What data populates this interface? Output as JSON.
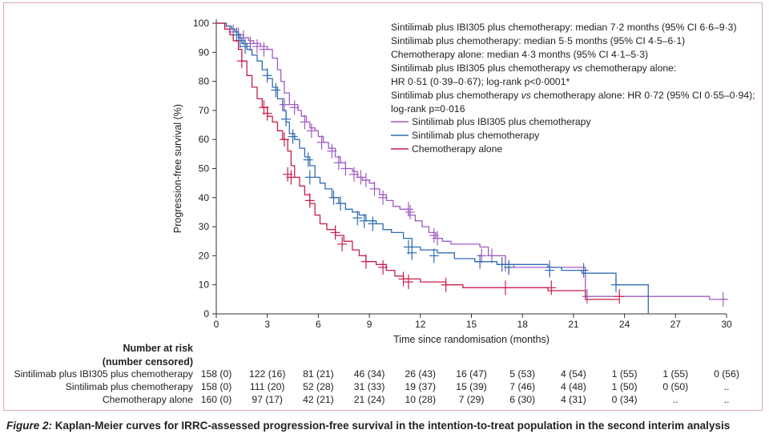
{
  "chart_data": {
    "type": "line",
    "subtype": "kaplan-meier",
    "xlabel": "Time since randomisation (months)",
    "ylabel": "Progression-free survival (%)",
    "xlim": [
      0,
      30
    ],
    "ylim": [
      0,
      100
    ],
    "xticks": [
      0,
      3,
      6,
      9,
      12,
      15,
      18,
      21,
      24,
      27,
      30
    ],
    "yticks": [
      0,
      10,
      20,
      30,
      40,
      50,
      60,
      70,
      80,
      90,
      100
    ],
    "grid": false,
    "annotations": [
      "Sintilimab plus IBI305 plus chemotherapy: median 7·2 months (95% CI 6·6–9·3)",
      "Sintilimab plus chemotherapy: median 5·5 months (95% CI 4·5–6·1)",
      "Chemotherapy alone: median 4·3 months (95% CI 4·1–5·3)",
      "Sintilimab plus IBI305 plus chemotherapy vs chemotherapy alone:",
      "HR 0·51 (0·39–0·67); log-rank p<0·0001*",
      "Sintilimab plus chemotherapy vs chemotherapy alone: HR 0·72 (95% CI 0·55–0·94);",
      "log-rank p=0·016"
    ],
    "legend_position": "top-right",
    "series": [
      {
        "name": "Sintilimab plus IBI305 plus chemotherapy",
        "color": "#a05cc0",
        "steps": [
          [
            0,
            100
          ],
          [
            0.5,
            99
          ],
          [
            0.8,
            98
          ],
          [
            1.0,
            97
          ],
          [
            1.3,
            96
          ],
          [
            1.6,
            95
          ],
          [
            1.9,
            94
          ],
          [
            2.2,
            93
          ],
          [
            2.6,
            92
          ],
          [
            3.0,
            91
          ],
          [
            3.3,
            88
          ],
          [
            3.6,
            84
          ],
          [
            3.8,
            80
          ],
          [
            4.0,
            76
          ],
          [
            4.3,
            72
          ],
          [
            4.8,
            70
          ],
          [
            5.0,
            68
          ],
          [
            5.3,
            66
          ],
          [
            5.5,
            64
          ],
          [
            5.8,
            63
          ],
          [
            6.0,
            61
          ],
          [
            6.3,
            59
          ],
          [
            6.6,
            57
          ],
          [
            7.0,
            54
          ],
          [
            7.3,
            52
          ],
          [
            7.6,
            50
          ],
          [
            8.0,
            49
          ],
          [
            8.3,
            47
          ],
          [
            8.6,
            46
          ],
          [
            9.0,
            45
          ],
          [
            9.3,
            43
          ],
          [
            9.6,
            41
          ],
          [
            10.0,
            39
          ],
          [
            10.4,
            37
          ],
          [
            10.8,
            36
          ],
          [
            11.3,
            34
          ],
          [
            11.7,
            32
          ],
          [
            12.1,
            30
          ],
          [
            12.5,
            28
          ],
          [
            12.9,
            26
          ],
          [
            13.3,
            25
          ],
          [
            13.8,
            24
          ],
          [
            15.5,
            23
          ],
          [
            16.0,
            20
          ],
          [
            17.0,
            17
          ],
          [
            17.5,
            16
          ],
          [
            21.7,
            6
          ],
          [
            29.0,
            5
          ],
          [
            30,
            5
          ]
        ],
        "censor": [
          [
            1.0,
            97
          ],
          [
            1.3,
            96
          ],
          [
            1.6,
            95
          ],
          [
            2.0,
            93
          ],
          [
            2.4,
            92
          ],
          [
            2.8,
            91
          ],
          [
            4.0,
            72
          ],
          [
            4.6,
            71
          ],
          [
            5.2,
            66
          ],
          [
            5.6,
            63
          ],
          [
            6.2,
            59
          ],
          [
            6.8,
            56
          ],
          [
            7.2,
            52
          ],
          [
            7.6,
            50
          ],
          [
            8.1,
            48
          ],
          [
            8.5,
            47
          ],
          [
            8.8,
            46
          ],
          [
            9.3,
            43
          ],
          [
            9.8,
            40
          ],
          [
            11.3,
            36
          ],
          [
            11.4,
            35
          ],
          [
            12.8,
            27
          ],
          [
            13.0,
            26
          ],
          [
            15.6,
            20
          ],
          [
            16.2,
            20
          ],
          [
            17.0,
            17
          ],
          [
            17.2,
            16
          ],
          [
            19.6,
            16
          ],
          [
            21.8,
            6
          ],
          [
            29.8,
            5
          ]
        ]
      },
      {
        "name": "Sintilimab plus chemotherapy",
        "color": "#2f6cb0",
        "steps": [
          [
            0,
            100
          ],
          [
            0.6,
            99
          ],
          [
            0.9,
            98
          ],
          [
            1.1,
            97
          ],
          [
            1.3,
            95
          ],
          [
            1.5,
            93
          ],
          [
            1.8,
            91
          ],
          [
            2.1,
            89
          ],
          [
            2.4,
            87
          ],
          [
            2.7,
            84
          ],
          [
            3.0,
            81
          ],
          [
            3.3,
            78
          ],
          [
            3.6,
            74
          ],
          [
            3.9,
            70
          ],
          [
            4.1,
            66
          ],
          [
            4.3,
            62
          ],
          [
            4.6,
            60
          ],
          [
            4.9,
            57
          ],
          [
            5.2,
            54
          ],
          [
            5.5,
            51
          ],
          [
            5.8,
            47
          ],
          [
            6.1,
            45
          ],
          [
            6.4,
            43
          ],
          [
            6.8,
            40
          ],
          [
            7.2,
            38
          ],
          [
            7.6,
            36
          ],
          [
            8.0,
            35
          ],
          [
            8.4,
            34
          ],
          [
            8.8,
            32
          ],
          [
            9.4,
            31
          ],
          [
            9.8,
            29
          ],
          [
            10.3,
            28
          ],
          [
            11.0,
            26
          ],
          [
            11.5,
            23
          ],
          [
            12.0,
            22
          ],
          [
            13.0,
            21
          ],
          [
            14.0,
            19
          ],
          [
            15.2,
            18
          ],
          [
            16.5,
            17
          ],
          [
            19.5,
            16
          ],
          [
            20.3,
            15
          ],
          [
            21.5,
            14
          ],
          [
            23.5,
            10
          ],
          [
            25.4,
            0
          ]
        ],
        "censor": [
          [
            1.2,
            96
          ],
          [
            1.4,
            94
          ],
          [
            1.7,
            92
          ],
          [
            3.0,
            82
          ],
          [
            3.5,
            77
          ],
          [
            4.1,
            67
          ],
          [
            4.5,
            61
          ],
          [
            5.4,
            53
          ],
          [
            5.5,
            47
          ],
          [
            6.9,
            40
          ],
          [
            7.3,
            38
          ],
          [
            8.3,
            33
          ],
          [
            8.7,
            32
          ],
          [
            9.2,
            31
          ],
          [
            11.3,
            23
          ],
          [
            11.5,
            21
          ],
          [
            12.8,
            20
          ],
          [
            15.5,
            18
          ],
          [
            16.8,
            17
          ],
          [
            17.2,
            16
          ],
          [
            19.6,
            15
          ],
          [
            21.6,
            15
          ],
          [
            23.5,
            10
          ]
        ]
      },
      {
        "name": "Chemotherapy alone",
        "color": "#c81e4a",
        "steps": [
          [
            0,
            100
          ],
          [
            0.5,
            98
          ],
          [
            0.8,
            96
          ],
          [
            1.0,
            94
          ],
          [
            1.3,
            91
          ],
          [
            1.5,
            87
          ],
          [
            1.8,
            82
          ],
          [
            2.1,
            78
          ],
          [
            2.4,
            74
          ],
          [
            2.7,
            71
          ],
          [
            3.0,
            68
          ],
          [
            3.3,
            66
          ],
          [
            3.6,
            63
          ],
          [
            3.9,
            60
          ],
          [
            4.2,
            56
          ],
          [
            4.4,
            51
          ],
          [
            4.6,
            47
          ],
          [
            4.9,
            44
          ],
          [
            5.2,
            41
          ],
          [
            5.5,
            38
          ],
          [
            5.8,
            34
          ],
          [
            6.1,
            31
          ],
          [
            6.5,
            29
          ],
          [
            7.0,
            27
          ],
          [
            7.5,
            25
          ],
          [
            8.0,
            22
          ],
          [
            8.4,
            20
          ],
          [
            8.8,
            18
          ],
          [
            9.4,
            17
          ],
          [
            10.0,
            15
          ],
          [
            10.5,
            13
          ],
          [
            11.0,
            12
          ],
          [
            12.0,
            11
          ],
          [
            13.5,
            10
          ],
          [
            14.5,
            9
          ],
          [
            19.5,
            8
          ],
          [
            21.7,
            5
          ],
          [
            23.7,
            5
          ]
        ],
        "censor": [
          [
            1.5,
            87
          ],
          [
            2.8,
            71
          ],
          [
            3.0,
            69
          ],
          [
            4.0,
            60
          ],
          [
            4.2,
            48
          ],
          [
            4.4,
            47
          ],
          [
            5.5,
            39
          ],
          [
            7.0,
            28
          ],
          [
            7.4,
            24
          ],
          [
            8.8,
            18
          ],
          [
            9.8,
            16
          ],
          [
            11.0,
            12
          ],
          [
            11.3,
            11
          ],
          [
            13.5,
            10
          ],
          [
            17.0,
            9
          ],
          [
            19.7,
            9
          ],
          [
            23.7,
            6
          ]
        ]
      }
    ],
    "risk_table": {
      "header": [
        "Number at risk",
        "(number censored)"
      ],
      "rows": [
        {
          "label": "Sintilimab plus IBI305 plus chemotherapy",
          "values": [
            "158 (0)",
            "122 (16)",
            "81 (21)",
            "46 (34)",
            "26 (43)",
            "16 (47)",
            "5 (53)",
            "4 (54)",
            "1 (55)",
            "1 (55)",
            "0 (56)"
          ]
        },
        {
          "label": "Sintilimab plus chemotherapy",
          "values": [
            "158 (0)",
            "111 (20)",
            "52 (28)",
            "31 (33)",
            "19 (37)",
            "15 (39)",
            "7 (46)",
            "4 (48)",
            "1 (50)",
            "0 (50)",
            ".."
          ]
        },
        {
          "label": "Chemotherapy alone",
          "values": [
            "160 (0)",
            "97 (17)",
            "42 (21)",
            "21 (24)",
            "10 (28)",
            "7 (29)",
            "6 (30)",
            "4 (31)",
            "0 (34)",
            "..",
            ".."
          ]
        }
      ]
    }
  },
  "caption": {
    "figure_label": "Figure 2:",
    "text": "Kaplan-Meier curves for IRRC-assessed progression-free survival in the intention-to-treat population in the second interim analysis"
  }
}
